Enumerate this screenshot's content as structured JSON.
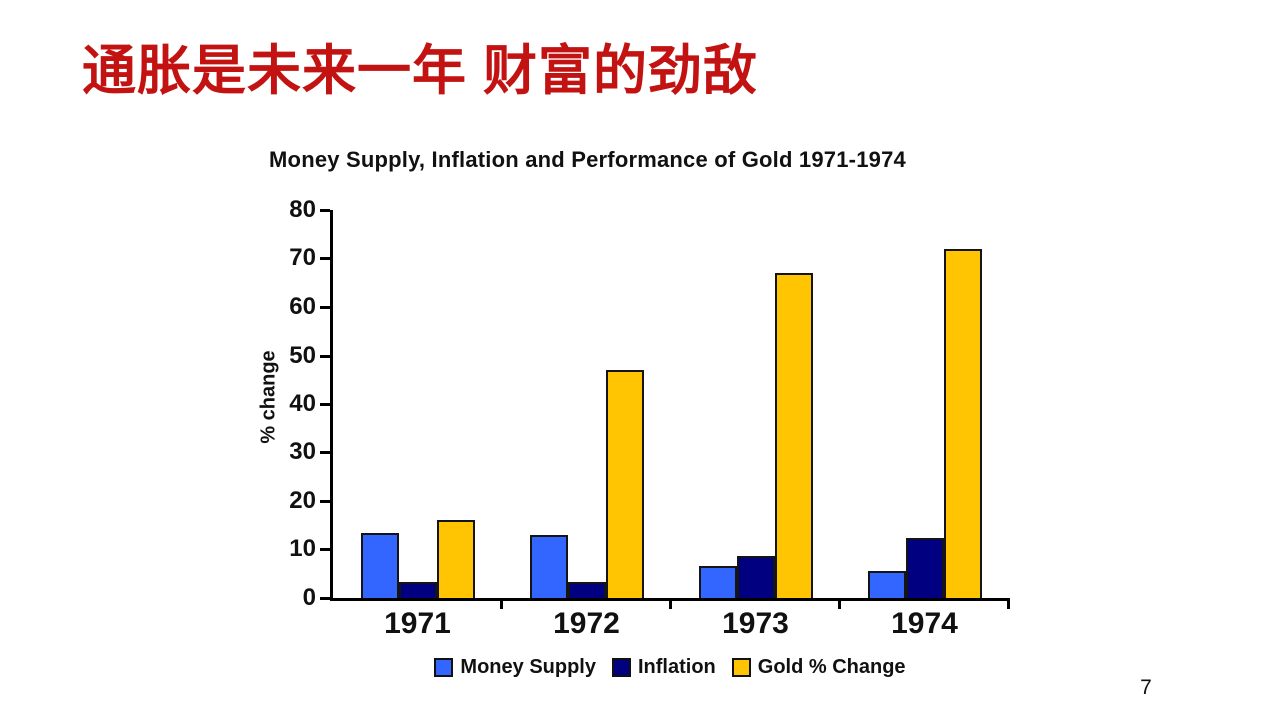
{
  "slide": {
    "title": "通胀是未来一年 财富的劲敌",
    "page_number": "7"
  },
  "theme": {
    "slide_title_color": "#C31212",
    "background": "#FFFFFF",
    "axis_color": "#000000",
    "bar_border_color": "#141414"
  },
  "chart_data": {
    "type": "bar",
    "title": "Money Supply, Inflation and Performance of Gold 1971-1974",
    "xlabel": "",
    "ylabel": "% change",
    "ylim": [
      0,
      80
    ],
    "yticks": [
      0,
      10,
      20,
      30,
      40,
      50,
      60,
      70,
      80
    ],
    "grid": false,
    "legend_position": "bottom",
    "categories": [
      "1971",
      "1972",
      "1973",
      "1974"
    ],
    "series": [
      {
        "name": "Money Supply",
        "color": "#3366FF",
        "values": [
          13.3,
          13.0,
          6.5,
          5.5
        ]
      },
      {
        "name": "Inflation",
        "color": "#000080",
        "values": [
          3.3,
          3.4,
          8.7,
          12.3
        ]
      },
      {
        "name": "Gold % Change",
        "color": "#FFC503",
        "values": [
          16,
          47,
          67,
          72
        ]
      }
    ]
  }
}
